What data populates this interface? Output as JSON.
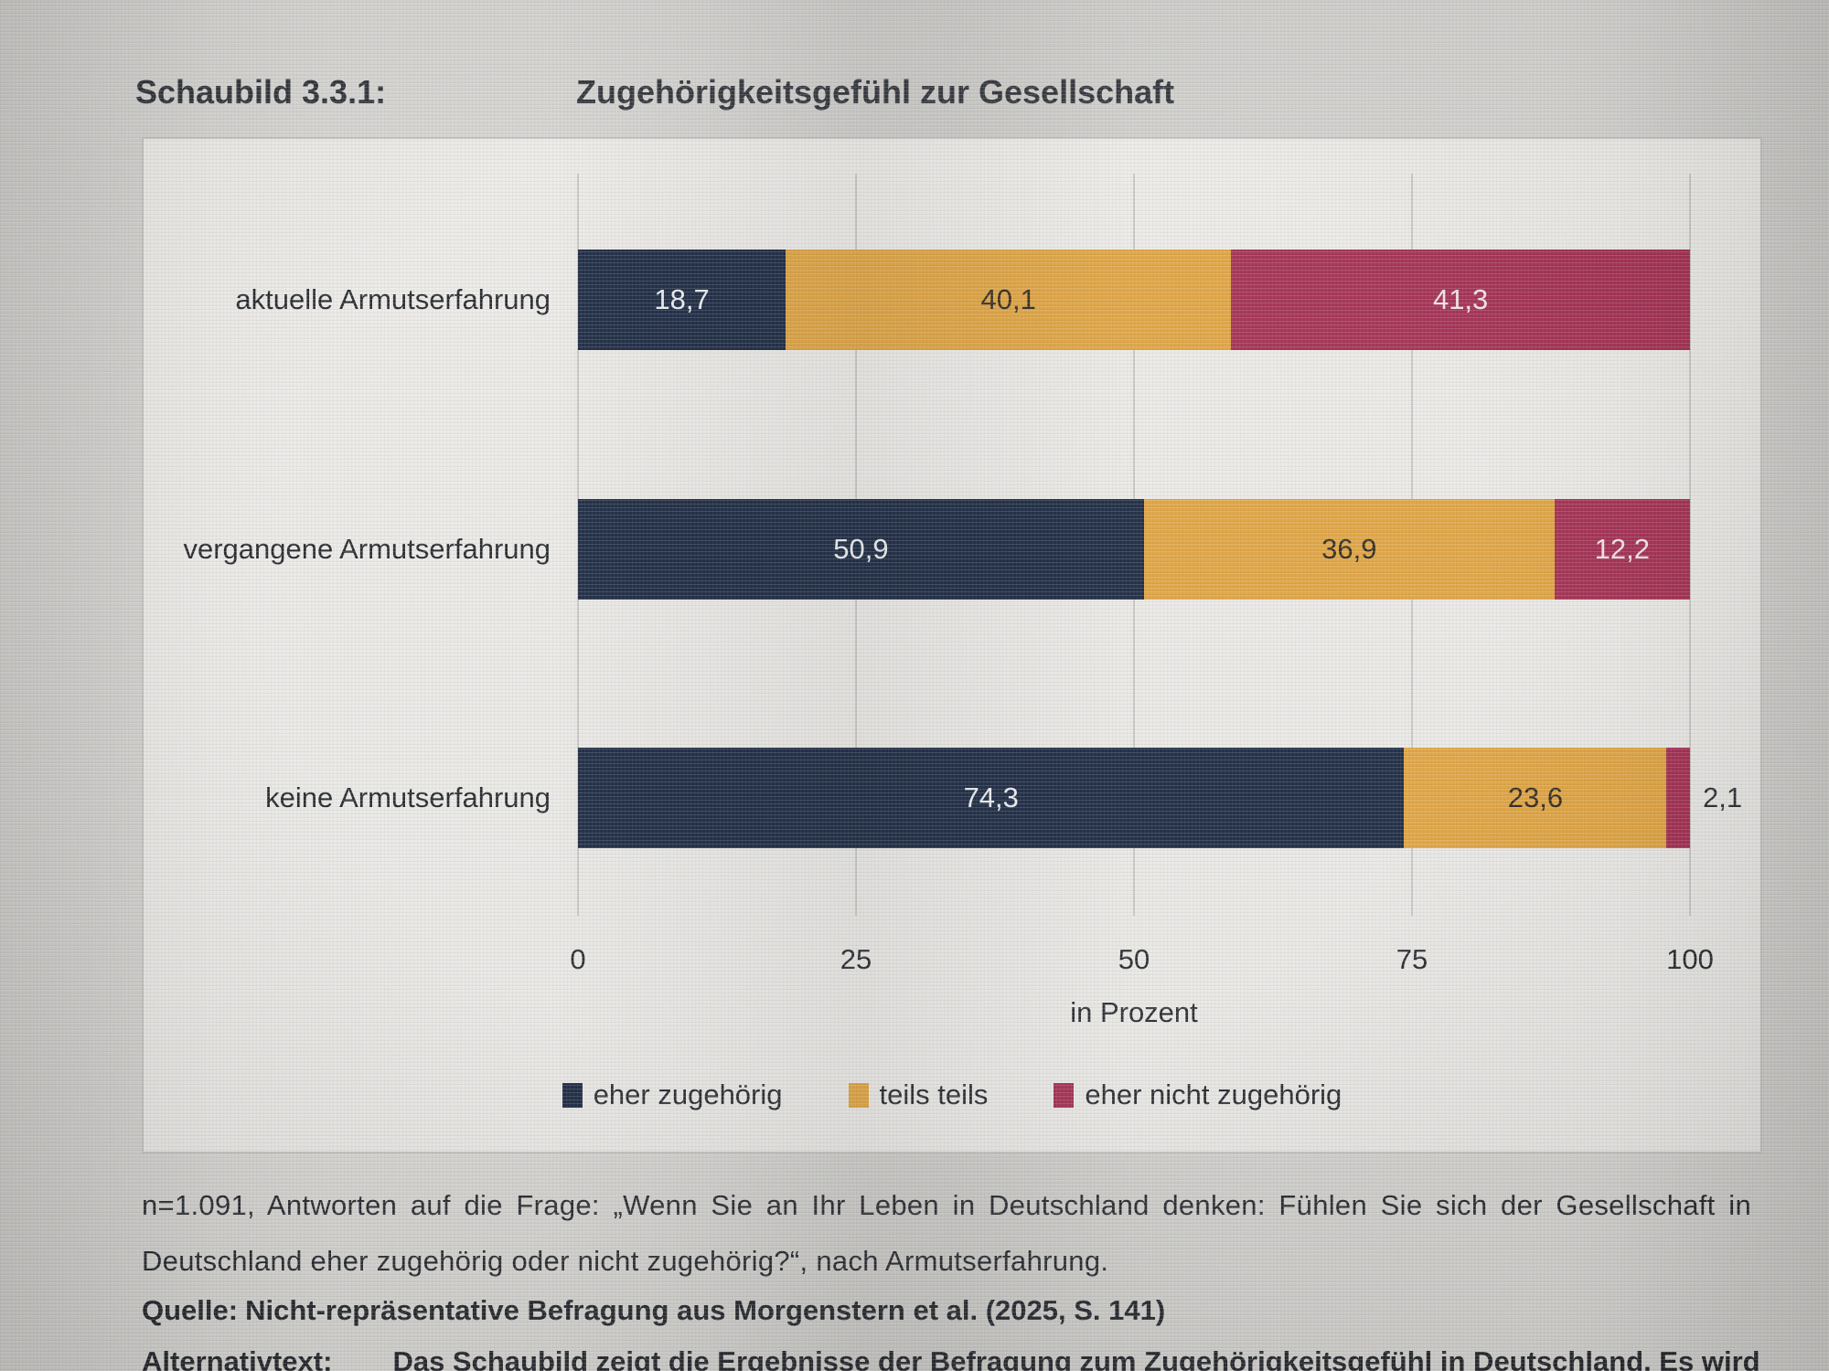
{
  "header": {
    "figure_label": "Schaubild 3.3.1:",
    "title": "Zugehörigkeitsgefühl zur Gesellschaft"
  },
  "chart_data": {
    "type": "bar",
    "orientation": "horizontal",
    "stacked": true,
    "categories": [
      "aktuelle Armutserfahrung",
      "vergangene Armutserfahrung",
      "keine Armutserfahrung"
    ],
    "series": [
      {
        "name": "eher zugehörig",
        "color": "#18263f",
        "label_color": "#eceef1",
        "values": [
          18.7,
          50.9,
          74.3
        ]
      },
      {
        "name": "teils teils",
        "color": "#dfa23e",
        "label_color": "#2b251c",
        "values": [
          40.1,
          36.9,
          23.6
        ]
      },
      {
        "name": "eher nicht zugehörig",
        "color": "#a22c50",
        "label_color": "#f0e4e8",
        "values": [
          41.3,
          12.2,
          2.1
        ]
      }
    ],
    "value_labels": [
      [
        "18,7",
        "40,1",
        "41,3"
      ],
      [
        "50,9",
        "36,9",
        "12,2"
      ],
      [
        "74,3",
        "23,6",
        "2,1"
      ]
    ],
    "xlabel": "in Prozent",
    "xlim": [
      0,
      100
    ],
    "xticks": [
      0,
      25,
      50,
      75,
      100
    ],
    "grid": true,
    "legend_position": "bottom"
  },
  "notes": {
    "sample_note": "n=1.091, Antworten auf die Frage: „Wenn Sie an Ihr Leben in Deutschland denken: Fühlen Sie sich der Gesellschaft in Deutschland eher zugehörig oder nicht zugehörig?“, nach Armutserfahrung.",
    "source_label": "Quelle:",
    "source_text": "Nicht-repräsentative Befragung aus Morgenstern et al. (2025, S. 141)",
    "alt_label": "Alternativtext:",
    "alt_text": "Das Schaubild zeigt die Ergebnisse der Befragung zum Zugehörigkeitsgefühl in Deutschland. Es wird"
  },
  "colors": {
    "page_bg": "#d2d1ce",
    "panel_bg": "#e9e8e5",
    "gridline": "#c7c6c3",
    "navy": "#18263f",
    "orange": "#dfa23e",
    "red": "#a22c50"
  }
}
